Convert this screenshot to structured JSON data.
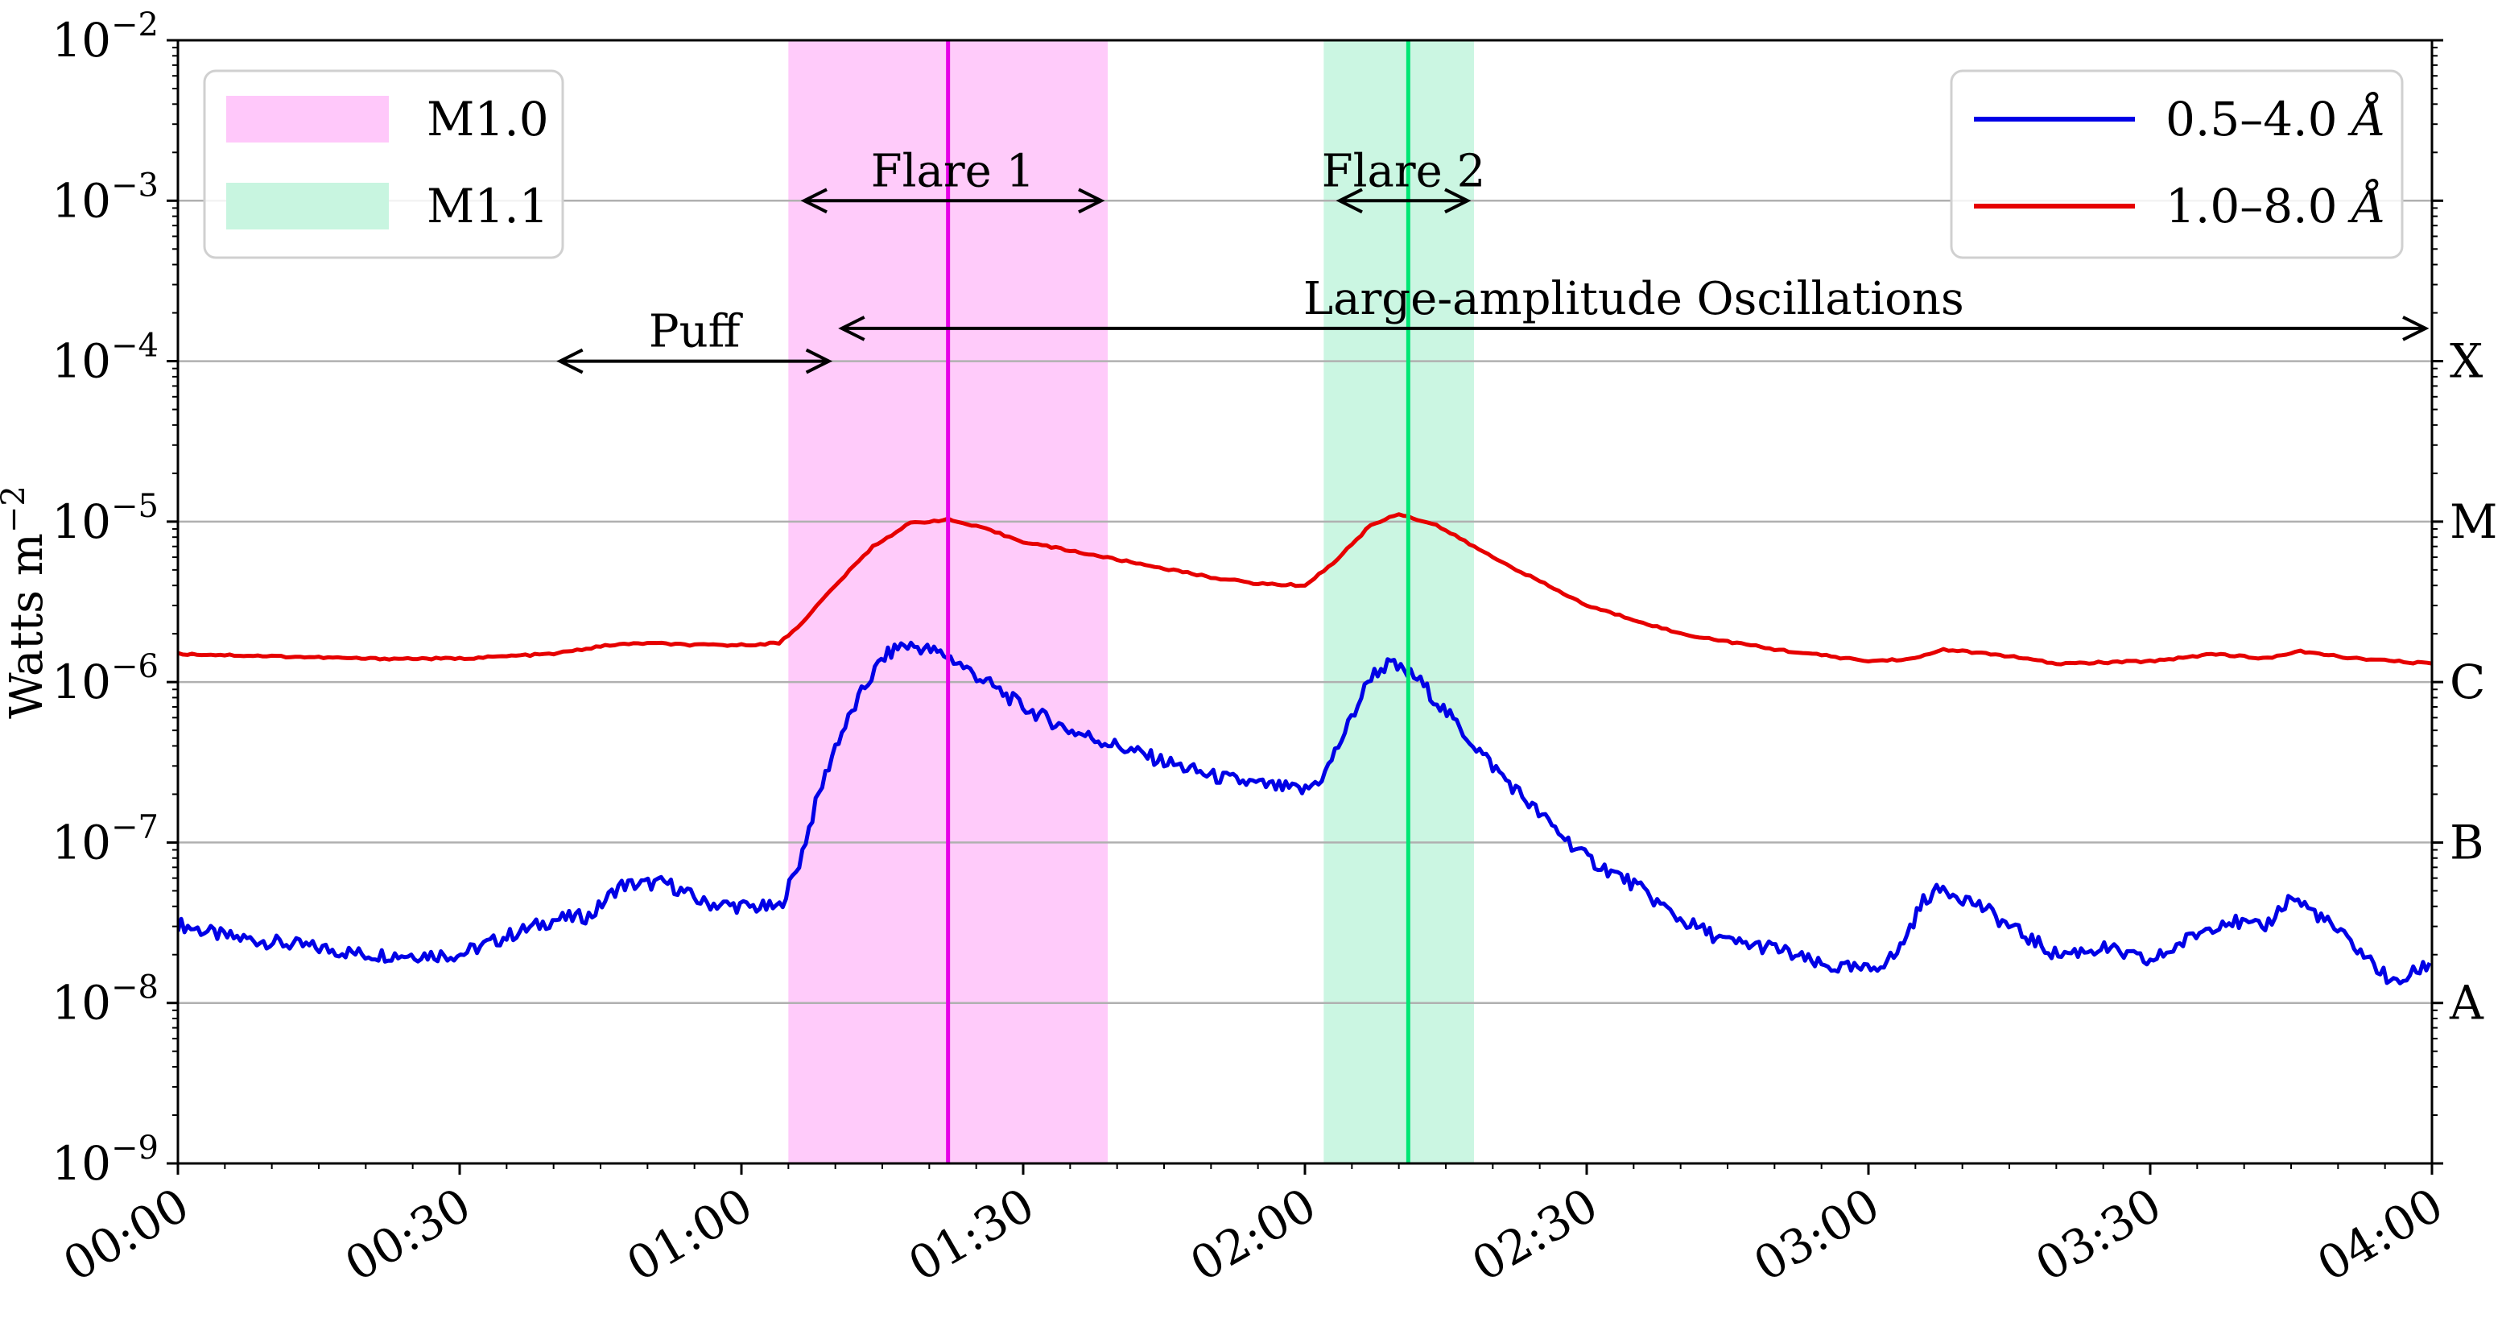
{
  "chart_data": {
    "type": "line",
    "ylabel": "Watts m",
    "ylabel_exponent": "−2",
    "y_scale": "log",
    "ylim": [
      1e-09,
      0.01
    ],
    "y_ticks": [
      {
        "value": 1e-09,
        "base": "10",
        "exp": "−9"
      },
      {
        "value": 1e-08,
        "base": "10",
        "exp": "−8"
      },
      {
        "value": 1e-07,
        "base": "10",
        "exp": "−7"
      },
      {
        "value": 1e-06,
        "base": "10",
        "exp": "−6"
      },
      {
        "value": 1e-05,
        "base": "10",
        "exp": "−5"
      },
      {
        "value": 0.0001,
        "base": "10",
        "exp": "−4"
      },
      {
        "value": 0.001,
        "base": "10",
        "exp": "−3"
      },
      {
        "value": 0.01,
        "base": "10",
        "exp": "−2"
      }
    ],
    "xlim": [
      "00:00",
      "04:00"
    ],
    "x_ticks": [
      "00:00",
      "00:30",
      "01:00",
      "01:30",
      "02:00",
      "02:30",
      "03:00",
      "03:30",
      "04:00"
    ],
    "class_labels": [
      {
        "label": "X",
        "value": 0.0001
      },
      {
        "label": "M",
        "value": 1e-05
      },
      {
        "label": "C",
        "value": 1e-06
      },
      {
        "label": "B",
        "value": 1e-07
      },
      {
        "label": "A",
        "value": 1e-08
      }
    ],
    "grid": "horizontal at decades",
    "series": [
      {
        "name": "0.5–4.0",
        "unit": "Å",
        "color": "#0000e6",
        "points": [
          [
            "00:00",
            3.1e-08
          ],
          [
            "00:05",
            2.6e-08
          ],
          [
            "00:10",
            2.4e-08
          ],
          [
            "00:15",
            2.2e-08
          ],
          [
            "00:20",
            2e-08
          ],
          [
            "00:25",
            2e-08
          ],
          [
            "00:30",
            2e-08
          ],
          [
            "00:35",
            2.6e-08
          ],
          [
            "00:40",
            3.3e-08
          ],
          [
            "00:44",
            3.5e-08
          ],
          [
            "00:47",
            5.4e-08
          ],
          [
            "00:52",
            5.6e-08
          ],
          [
            "00:56",
            4.2e-08
          ],
          [
            "01:00",
            4e-08
          ],
          [
            "01:04",
            3.9e-08
          ],
          [
            "01:06",
            7e-08
          ],
          [
            "01:08",
            1.8e-07
          ],
          [
            "01:10",
            4e-07
          ],
          [
            "01:13",
            9e-07
          ],
          [
            "01:15",
            1.4e-06
          ],
          [
            "01:17",
            1.7e-06
          ],
          [
            "01:19",
            1.65e-06
          ],
          [
            "01:22",
            1.45e-06
          ],
          [
            "01:25",
            1.1e-06
          ],
          [
            "01:30",
            7e-07
          ],
          [
            "01:35",
            5e-07
          ],
          [
            "01:40",
            4e-07
          ],
          [
            "01:45",
            3.2e-07
          ],
          [
            "01:50",
            2.6e-07
          ],
          [
            "01:55",
            2.3e-07
          ],
          [
            "02:00",
            2.1e-07
          ],
          [
            "02:02",
            2.6e-07
          ],
          [
            "02:05",
            6e-07
          ],
          [
            "02:07",
            1.1e-06
          ],
          [
            "02:09",
            1.3e-06
          ],
          [
            "02:12",
            1.05e-06
          ],
          [
            "02:15",
            6.5e-07
          ],
          [
            "02:20",
            3e-07
          ],
          [
            "02:25",
            1.5e-07
          ],
          [
            "02:30",
            8e-08
          ],
          [
            "02:35",
            5.5e-08
          ],
          [
            "02:40",
            3.3e-08
          ],
          [
            "02:45",
            2.4e-08
          ],
          [
            "02:50",
            2.2e-08
          ],
          [
            "02:55",
            1.7e-08
          ],
          [
            "03:00",
            1.6e-08
          ],
          [
            "03:03",
            2e-08
          ],
          [
            "03:06",
            4.5e-08
          ],
          [
            "03:08",
            5.2e-08
          ],
          [
            "03:12",
            4e-08
          ],
          [
            "03:15",
            3e-08
          ],
          [
            "03:20",
            2e-08
          ],
          [
            "03:25",
            2.2e-08
          ],
          [
            "03:30",
            1.8e-08
          ],
          [
            "03:35",
            2.7e-08
          ],
          [
            "03:38",
            3.3e-08
          ],
          [
            "03:42",
            2.9e-08
          ],
          [
            "03:45",
            4.6e-08
          ],
          [
            "03:48",
            3.5e-08
          ],
          [
            "03:52",
            2.2e-08
          ],
          [
            "03:56",
            1.3e-08
          ],
          [
            "04:00",
            1.8e-08
          ]
        ]
      },
      {
        "name": "1.0–8.0",
        "unit": "Å",
        "color": "#e60000",
        "points": [
          [
            "00:00",
            1.5e-06
          ],
          [
            "00:10",
            1.45e-06
          ],
          [
            "00:20",
            1.4e-06
          ],
          [
            "00:30",
            1.4e-06
          ],
          [
            "00:40",
            1.5e-06
          ],
          [
            "00:46",
            1.7e-06
          ],
          [
            "00:50",
            1.75e-06
          ],
          [
            "00:55",
            1.7e-06
          ],
          [
            "01:00",
            1.7e-06
          ],
          [
            "01:04",
            1.75e-06
          ],
          [
            "01:06",
            2.2e-06
          ],
          [
            "01:10",
            4e-06
          ],
          [
            "01:14",
            7e-06
          ],
          [
            "01:18",
            9.8e-06
          ],
          [
            "01:22",
            1.03e-05
          ],
          [
            "01:26",
            9e-06
          ],
          [
            "01:30",
            7.5e-06
          ],
          [
            "01:40",
            5.8e-06
          ],
          [
            "01:50",
            4.5e-06
          ],
          [
            "01:55",
            4.1e-06
          ],
          [
            "02:00",
            4e-06
          ],
          [
            "02:03",
            5.5e-06
          ],
          [
            "02:07",
            9.5e-06
          ],
          [
            "02:10",
            1.12e-05
          ],
          [
            "02:14",
            9.5e-06
          ],
          [
            "02:20",
            6e-06
          ],
          [
            "02:30",
            3e-06
          ],
          [
            "02:40",
            2e-06
          ],
          [
            "02:50",
            1.6e-06
          ],
          [
            "03:00",
            1.35e-06
          ],
          [
            "03:05",
            1.4e-06
          ],
          [
            "03:08",
            1.6e-06
          ],
          [
            "03:15",
            1.45e-06
          ],
          [
            "03:20",
            1.3e-06
          ],
          [
            "03:30",
            1.35e-06
          ],
          [
            "03:37",
            1.5e-06
          ],
          [
            "03:42",
            1.4e-06
          ],
          [
            "03:46",
            1.55e-06
          ],
          [
            "03:52",
            1.4e-06
          ],
          [
            "04:00",
            1.3e-06
          ]
        ]
      }
    ],
    "shaded_regions": [
      {
        "label": "M1.0",
        "start": "01:05",
        "end": "01:39",
        "peak": "01:22",
        "fill": "#ffc8fa",
        "line": "#e600e6"
      },
      {
        "label": "M1.1",
        "start": "02:02",
        "end": "02:18",
        "peak": "02:11",
        "fill": "#c8f5e0",
        "line": "#00e673"
      }
    ],
    "annotations": [
      {
        "label": "Flare 1",
        "start": "01:06",
        "end": "01:39",
        "y": 0.001
      },
      {
        "label": "Flare 2",
        "start": "02:03",
        "end": "02:18",
        "y": 0.001
      },
      {
        "label": "Puff",
        "start": "00:40",
        "end": "01:10",
        "y": 0.0001
      },
      {
        "label": "Large-amplitude Oscillations",
        "start": "01:10",
        "end": "04:00",
        "y": 0.00016
      }
    ],
    "legends": {
      "left": {
        "placement": "top-left",
        "entries": [
          "M1.0",
          "M1.1"
        ]
      },
      "right": {
        "placement": "top-right",
        "entries": [
          "0.5–4.0",
          "1.0–8.0"
        ]
      }
    }
  }
}
